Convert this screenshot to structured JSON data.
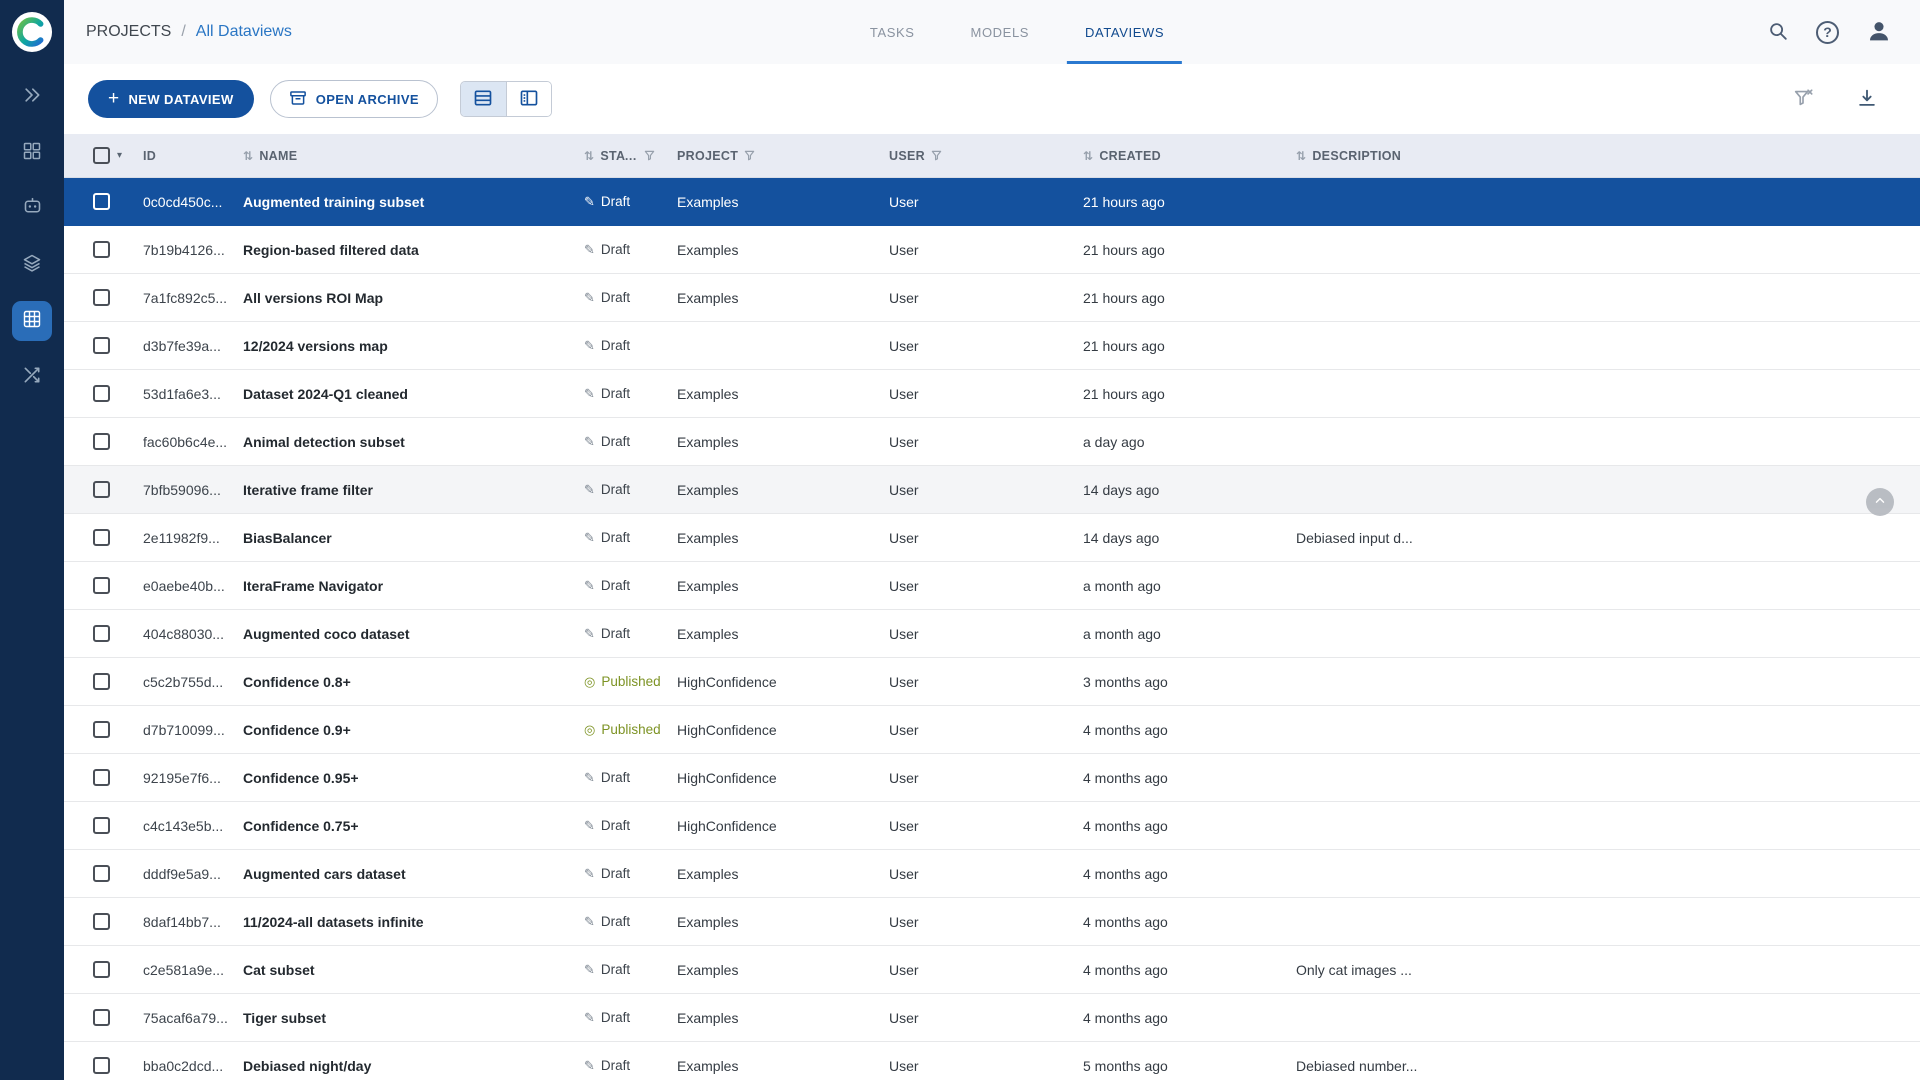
{
  "topbar": {
    "breadcrumb": {
      "root": "PROJECTS",
      "separator": "/",
      "current": "All Dataviews"
    },
    "tabs": [
      {
        "label": "TASKS",
        "active": false
      },
      {
        "label": "MODELS",
        "active": false
      },
      {
        "label": "DATAVIEWS",
        "active": true
      }
    ]
  },
  "toolbar": {
    "new_dataview_label": "NEW DATAVIEW",
    "open_archive_label": "OPEN ARCHIVE"
  },
  "table": {
    "headers": {
      "id": "ID",
      "name": "NAME",
      "status": "STATUS",
      "project": "PROJECT",
      "user": "USER",
      "created": "CREATED",
      "description": "DESCRIPTION"
    },
    "rows": [
      {
        "id": "0c0cd450c...",
        "name": "Augmented training subset",
        "status": "Draft",
        "project": "Examples",
        "user": "User",
        "created": "21 hours ago",
        "description": "",
        "selected": true
      },
      {
        "id": "7b19b4126...",
        "name": "Region-based filtered data",
        "status": "Draft",
        "project": "Examples",
        "user": "User",
        "created": "21 hours ago",
        "description": ""
      },
      {
        "id": "7a1fc892c5...",
        "name": "All versions ROI Map",
        "status": "Draft",
        "project": "Examples",
        "user": "User",
        "created": "21 hours ago",
        "description": ""
      },
      {
        "id": "d3b7fe39a...",
        "name": "12/2024 versions map",
        "status": "Draft",
        "project": "",
        "user": "User",
        "created": "21 hours ago",
        "description": ""
      },
      {
        "id": "53d1fa6e3...",
        "name": "Dataset 2024-Q1 cleaned",
        "status": "Draft",
        "project": "Examples",
        "user": "User",
        "created": "21 hours ago",
        "description": ""
      },
      {
        "id": "fac60b6c4e...",
        "name": "Animal detection subset",
        "status": "Draft",
        "project": "Examples",
        "user": "User",
        "created": "a day ago",
        "description": ""
      },
      {
        "id": "7bfb59096...",
        "name": "Iterative frame filter",
        "status": "Draft",
        "project": "Examples",
        "user": "User",
        "created": "14 days ago",
        "description": "",
        "hovered": true
      },
      {
        "id": "2e11982f9...",
        "name": "BiasBalancer",
        "status": "Draft",
        "project": "Examples",
        "user": "User",
        "created": "14 days ago",
        "description": "Debiased input d..."
      },
      {
        "id": "e0aebe40b...",
        "name": "IteraFrame Navigator",
        "status": "Draft",
        "project": "Examples",
        "user": "User",
        "created": "a month ago",
        "description": ""
      },
      {
        "id": "404c88030...",
        "name": "Augmented coco dataset",
        "status": "Draft",
        "project": "Examples",
        "user": "User",
        "created": "a month ago",
        "description": ""
      },
      {
        "id": "c5c2b755d...",
        "name": "Confidence 0.8+",
        "status": "Published",
        "project": "HighConfidence",
        "user": "User",
        "created": "3 months ago",
        "description": ""
      },
      {
        "id": "d7b710099...",
        "name": "Confidence 0.9+",
        "status": "Published",
        "project": "HighConfidence",
        "user": "User",
        "created": "4 months ago",
        "description": ""
      },
      {
        "id": "92195e7f6...",
        "name": "Confidence 0.95+",
        "status": "Draft",
        "project": "HighConfidence",
        "user": "User",
        "created": "4 months ago",
        "description": ""
      },
      {
        "id": "c4c143e5b...",
        "name": "Confidence 0.75+",
        "status": "Draft",
        "project": "HighConfidence",
        "user": "User",
        "created": "4 months ago",
        "description": ""
      },
      {
        "id": "dddf9e5a9...",
        "name": "Augmented cars dataset",
        "status": "Draft",
        "project": "Examples",
        "user": "User",
        "created": "4 months ago",
        "description": ""
      },
      {
        "id": "8daf14bb7...",
        "name": "11/2024-all datasets infinite",
        "status": "Draft",
        "project": "Examples",
        "user": "User",
        "created": "4 months ago",
        "description": ""
      },
      {
        "id": "c2e581a9e...",
        "name": "Cat subset",
        "status": "Draft",
        "project": "Examples",
        "user": "User",
        "created": "4 months ago",
        "description": "Only cat images ..."
      },
      {
        "id": "75acaf6a79...",
        "name": "Tiger subset",
        "status": "Draft",
        "project": "Examples",
        "user": "User",
        "created": "4 months ago",
        "description": ""
      },
      {
        "id": "bba0c2dcd...",
        "name": "Debiased night/day",
        "status": "Draft",
        "project": "Examples",
        "user": "User",
        "created": "5 months ago",
        "description": "Debiased number..."
      }
    ]
  },
  "icons": {
    "plus": "+",
    "question": "?",
    "sort": "⇅",
    "caret": "▾",
    "draft": "✎",
    "published": "◎"
  },
  "colors": {
    "primary": "#14519e",
    "selected_row": "#14519e",
    "sidebar": "#112b4e",
    "sidebar_active": "#2a6db8",
    "tab_underline": "#2a79d0",
    "published_status": "#7d9324",
    "header_bg": "#e8ebf3",
    "link_blue": "#2a76c4"
  }
}
